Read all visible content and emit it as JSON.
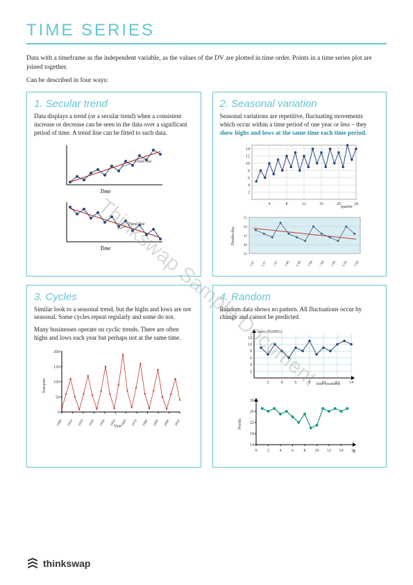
{
  "page": {
    "title": "TIME SERIES",
    "intro1": "Data with a timeframe as the independent variable, as the values of the DV are plotted in time order. Points in a time series plot are joined together.",
    "intro2": "Can be described in four ways:"
  },
  "box1": {
    "title": "1. Secular trend",
    "text": "Data displays a trend (or a secular trend) when a consistent increase or decrease can be seen in the data over a significant period of time. A trend line can be fitted to such data.",
    "chart_up": {
      "trend_label": "Trend line",
      "x_label": "Time",
      "points": [
        [
          5,
          58
        ],
        [
          15,
          50
        ],
        [
          25,
          55
        ],
        [
          35,
          45
        ],
        [
          45,
          40
        ],
        [
          55,
          48
        ],
        [
          65,
          35
        ],
        [
          75,
          42
        ],
        [
          85,
          28
        ],
        [
          95,
          34
        ],
        [
          105,
          20
        ],
        [
          115,
          26
        ],
        [
          125,
          12
        ],
        [
          135,
          18
        ]
      ],
      "trend": [
        [
          5,
          58
        ],
        [
          135,
          14
        ]
      ],
      "point_color": "#2a4a7a",
      "line_color": "#2a4a7a",
      "trend_color": "#c0392b"
    },
    "chart_down": {
      "trend_label": "Trend line",
      "x_label": "Time",
      "points": [
        [
          5,
          12
        ],
        [
          15,
          22
        ],
        [
          25,
          15
        ],
        [
          35,
          28
        ],
        [
          45,
          20
        ],
        [
          55,
          34
        ],
        [
          65,
          26
        ],
        [
          75,
          40
        ],
        [
          85,
          32
        ],
        [
          95,
          46
        ],
        [
          105,
          38
        ],
        [
          115,
          52
        ],
        [
          125,
          44
        ],
        [
          135,
          58
        ]
      ],
      "trend": [
        [
          5,
          14
        ],
        [
          135,
          56
        ]
      ],
      "point_color": "#2a4a7a",
      "line_color": "#2a4a7a",
      "trend_color": "#c0392b"
    }
  },
  "box2": {
    "title": "2. Seasonal variation",
    "text1": "Seasonal variations are repetitive, fluctuating movements which occur within a time period of one year or less – they ",
    "text_hl": "show highs and lows at the same time each time period.",
    "chart_a": {
      "x_label": "quarter",
      "x_ticks": [
        4,
        8,
        12,
        16,
        20,
        24
      ],
      "y_ticks": [
        2,
        4,
        6,
        8,
        10,
        12,
        14
      ],
      "points": [
        [
          1,
          5
        ],
        [
          2,
          8
        ],
        [
          3,
          6
        ],
        [
          4,
          10
        ],
        [
          5,
          7
        ],
        [
          6,
          11
        ],
        [
          7,
          8
        ],
        [
          8,
          12
        ],
        [
          9,
          9
        ],
        [
          10,
          13
        ],
        [
          11,
          8
        ],
        [
          12,
          12
        ],
        [
          13,
          9
        ],
        [
          14,
          14
        ],
        [
          15,
          10
        ],
        [
          16,
          13
        ],
        [
          17,
          9
        ],
        [
          18,
          14
        ],
        [
          19,
          10
        ],
        [
          20,
          13
        ],
        [
          21,
          9
        ],
        [
          22,
          15
        ],
        [
          23,
          11
        ],
        [
          24,
          14
        ]
      ],
      "point_color": "#2a4a7a",
      "grid_color": "#cccccc"
    },
    "chart_b": {
      "y_label": "Deaths/day",
      "y_ticks": [
        35,
        40,
        45,
        50,
        55
      ],
      "x_labels": [
        "Jun 07",
        "Sep 07",
        "Dec 07",
        "Mar 08",
        "Jun 08",
        "Sep 08",
        "Dec 08",
        "Mar 09",
        "Jun 09",
        "Sep 09"
      ],
      "points": [
        [
          8,
          48
        ],
        [
          18,
          46
        ],
        [
          28,
          44
        ],
        [
          38,
          52
        ],
        [
          48,
          46
        ],
        [
          58,
          44
        ],
        [
          68,
          42
        ],
        [
          78,
          50
        ],
        [
          88,
          46
        ],
        [
          98,
          44
        ],
        [
          108,
          42
        ],
        [
          118,
          50
        ],
        [
          128,
          46
        ]
      ],
      "trend": [
        [
          5,
          49
        ],
        [
          130,
          43
        ]
      ],
      "bg": "#d9eef4",
      "point_color": "#3b5b8a",
      "trend_color": "#c0392b"
    }
  },
  "box3": {
    "title": "3. Cycles",
    "text1": "Similar look to a seasonal trend, but the highs and lows are not seasonal. Some cycles repeat regularly and some do not.",
    "text2": "Many businesses operate on cyclic trends. There are often highs and lows each year but perhaps not at the same time.",
    "chart": {
      "y_label": "Sunspots",
      "y_ticks": [
        0,
        50,
        100,
        150,
        200
      ],
      "x_ticks": [
        "1900",
        "1910",
        "1920",
        "1930",
        "1940",
        "1950",
        "1960",
        "1970",
        "1980",
        "1990",
        "2000",
        "2010"
      ],
      "x_label": "Year",
      "color": "#c0392b",
      "series": [
        [
          0,
          10
        ],
        [
          5,
          60
        ],
        [
          10,
          110
        ],
        [
          15,
          50
        ],
        [
          20,
          8
        ],
        [
          25,
          60
        ],
        [
          30,
          120
        ],
        [
          35,
          55
        ],
        [
          40,
          10
        ],
        [
          45,
          70
        ],
        [
          50,
          150
        ],
        [
          55,
          60
        ],
        [
          60,
          12
        ],
        [
          65,
          90
        ],
        [
          70,
          190
        ],
        [
          75,
          70
        ],
        [
          80,
          15
        ],
        [
          85,
          80
        ],
        [
          90,
          160
        ],
        [
          95,
          60
        ],
        [
          100,
          12
        ],
        [
          105,
          70
        ],
        [
          110,
          140
        ],
        [
          115,
          50
        ],
        [
          120,
          10
        ],
        [
          125,
          60
        ],
        [
          130,
          110
        ],
        [
          135,
          40
        ]
      ]
    }
  },
  "box4": {
    "title": "4. Random",
    "text": "Random data shows no pattern. All fluctuations occur by change and cannot be predicted.",
    "chart_a": {
      "title": "sales ($1000's)",
      "x_label": "time (months)",
      "x_ticks": [
        2,
        4,
        6,
        8,
        10,
        12,
        14
      ],
      "y_ticks": [
        2,
        4,
        6,
        8,
        10,
        12
      ],
      "points": [
        [
          1,
          9
        ],
        [
          2,
          7
        ],
        [
          3,
          10
        ],
        [
          4,
          8
        ],
        [
          5,
          6
        ],
        [
          6,
          9
        ],
        [
          7,
          8
        ],
        [
          8,
          11
        ],
        [
          9,
          7
        ],
        [
          10,
          9
        ],
        [
          11,
          8
        ],
        [
          12,
          10
        ],
        [
          13,
          11
        ],
        [
          14,
          10
        ]
      ],
      "color": "#2a4a7a",
      "grid": "#8dd0dd"
    },
    "chart_b": {
      "y_label": "Profits",
      "y_ticks": [
        14,
        18,
        22,
        26,
        30
      ],
      "x_ticks": [
        0,
        2,
        4,
        6,
        8,
        10,
        12,
        14,
        16
      ],
      "x_end_label": "t",
      "points": [
        [
          1,
          27
        ],
        [
          2,
          26
        ],
        [
          3,
          27
        ],
        [
          4,
          25
        ],
        [
          5,
          26
        ],
        [
          6,
          24
        ],
        [
          7,
          22
        ],
        [
          8,
          25
        ],
        [
          9,
          20
        ],
        [
          10,
          21
        ],
        [
          11,
          27
        ],
        [
          12,
          26
        ],
        [
          13,
          27
        ],
        [
          14,
          26
        ],
        [
          15,
          27
        ]
      ],
      "color": "#1a9a88"
    }
  },
  "footer": {
    "brand": "thinkswap"
  },
  "watermark": "Thinkswap Sample Document"
}
